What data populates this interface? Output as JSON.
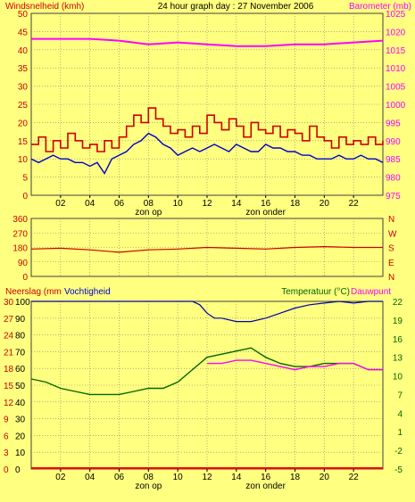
{
  "header": {
    "left": "Windsnelheid (kmh)",
    "center": "24 hour graph day : 27 November 2006",
    "right": "Barometer (mb)"
  },
  "labels": {
    "sunrise": "zon op",
    "sunset": "zon onder",
    "neerslag": "Neerslag (mm",
    "vocht": "Vochtigheid",
    "temp": "Temperatuur (°C)",
    "dauw": "Dauwpunt"
  },
  "colors": {
    "bg": "#FFFF80",
    "plot": "#FFFF80",
    "wind": "#CC0000",
    "windAvg": "#0000CC",
    "baro": "#FF00FF",
    "temp": "#006600",
    "dew": "#FF00FF",
    "hum": "#0000AA",
    "rain": "#FF0000",
    "winddir": "#CC0000",
    "grid": "#808080"
  },
  "chart_data": [
    {
      "type": "line",
      "name": "wind-barometer",
      "x_ticks": [
        "02",
        "04",
        "06",
        "08",
        "10",
        "12",
        "14",
        "16",
        "18",
        "20",
        "22"
      ],
      "ylim": [
        0,
        50
      ],
      "y_ticks_left": [
        0,
        5,
        10,
        15,
        20,
        25,
        30,
        35,
        40,
        45,
        50
      ],
      "ylim_right": [
        975,
        1025
      ],
      "y_ticks_right": [
        975,
        980,
        985,
        990,
        995,
        1000,
        1005,
        1010,
        1015,
        1020,
        1025
      ],
      "gust_hours": [
        0,
        0.5,
        1,
        1.5,
        2,
        2.5,
        3,
        3.5,
        4,
        4.5,
        5,
        5.5,
        6,
        6.5,
        7,
        7.5,
        8,
        8.5,
        9,
        9.5,
        10,
        10.5,
        11,
        11.5,
        12,
        12.5,
        13,
        13.5,
        14,
        14.5,
        15,
        15.5,
        16,
        16.5,
        17,
        17.5,
        18,
        18.5,
        19,
        19.5,
        20,
        20.5,
        21,
        21.5,
        22,
        22.5,
        23,
        23.5,
        24
      ],
      "gust": [
        14,
        16,
        12,
        15,
        13,
        17,
        15,
        13,
        14,
        12,
        15,
        13,
        16,
        19,
        22,
        20,
        24,
        21,
        19,
        17,
        18,
        16,
        19,
        17,
        22,
        20,
        18,
        21,
        19,
        16,
        20,
        18,
        17,
        19,
        16,
        18,
        17,
        15,
        19,
        16,
        15,
        13,
        16,
        14,
        15,
        14,
        16,
        14,
        15
      ],
      "avg_hours": [
        0,
        0.5,
        1,
        1.5,
        2,
        2.5,
        3,
        3.5,
        4,
        4.5,
        5,
        5.5,
        6,
        6.5,
        7,
        7.5,
        8,
        8.5,
        9,
        9.5,
        10,
        10.5,
        11,
        11.5,
        12,
        12.5,
        13,
        13.5,
        14,
        14.5,
        15,
        15.5,
        16,
        16.5,
        17,
        17.5,
        18,
        18.5,
        19,
        19.5,
        20,
        20.5,
        21,
        21.5,
        22,
        22.5,
        23,
        23.5,
        24
      ],
      "avg": [
        10,
        9,
        10,
        11,
        10,
        10,
        9,
        9,
        8,
        9,
        6,
        10,
        11,
        12,
        14,
        15,
        17,
        16,
        14,
        13,
        11,
        12,
        13,
        12,
        13,
        14,
        13,
        12,
        14,
        13,
        12,
        12,
        14,
        13,
        13,
        12,
        12,
        11,
        11,
        10,
        10,
        10,
        11,
        10,
        10,
        11,
        10,
        10,
        9
      ],
      "baro_hours": [
        0,
        2,
        4,
        6,
        8,
        10,
        12,
        14,
        16,
        18,
        20,
        22,
        24
      ],
      "baro": [
        1018,
        1018,
        1018,
        1017.5,
        1016.5,
        1017,
        1016.5,
        1016,
        1016,
        1016.5,
        1016.5,
        1017,
        1017.5
      ]
    },
    {
      "type": "line",
      "name": "wind-direction",
      "y_ticks": [
        360,
        270,
        180,
        90,
        0
      ],
      "y_ticks_right": [
        "N",
        "W",
        "S",
        "E",
        "N"
      ],
      "hours": [
        0,
        2,
        4,
        6,
        8,
        10,
        12,
        14,
        16,
        18,
        20,
        22,
        24
      ],
      "values": [
        170,
        175,
        165,
        150,
        165,
        170,
        180,
        175,
        170,
        180,
        185,
        180,
        180
      ]
    },
    {
      "type": "line",
      "name": "humidity-temperature",
      "y_ticks_left_rain": [
        0,
        3,
        6,
        9,
        12,
        15,
        18,
        21,
        24,
        27,
        30
      ],
      "y_ticks_left_hum": [
        0,
        10,
        20,
        30,
        40,
        50,
        60,
        70,
        80,
        90,
        100
      ],
      "y_ticks_right": [
        -5,
        -2,
        1,
        4,
        7,
        10,
        13,
        16,
        19,
        22
      ],
      "ylim_temp": [
        -5,
        22
      ],
      "hum_hours": [
        0,
        2,
        4,
        6,
        8,
        10,
        11,
        11.5,
        12,
        12.5,
        13,
        14,
        15,
        16,
        17,
        18,
        19,
        20,
        21,
        22,
        23,
        24
      ],
      "humidity": [
        100,
        100,
        100,
        100,
        100,
        100,
        100,
        98,
        93,
        90,
        90,
        88,
        88,
        90,
        93,
        96,
        98,
        99,
        100,
        99,
        100,
        100
      ],
      "temp_hours": [
        0,
        1,
        2,
        3,
        4,
        5,
        6,
        7,
        8,
        9,
        10,
        11,
        12,
        13,
        14,
        15,
        16,
        17,
        18,
        19,
        20,
        21,
        22,
        23,
        24
      ],
      "temperature": [
        9.5,
        9,
        8,
        7.5,
        7,
        7,
        7,
        7.5,
        8,
        8,
        9,
        11,
        13,
        13.5,
        14,
        14.5,
        13,
        12,
        11.5,
        11.5,
        12,
        12,
        12,
        11,
        11
      ],
      "dew_hours": [
        12,
        13,
        14,
        15,
        16,
        17,
        18,
        19,
        20,
        21,
        22,
        23,
        24
      ],
      "dewpoint": [
        12,
        12,
        12.5,
        12.5,
        12,
        11.5,
        11,
        11.5,
        11.5,
        12,
        12,
        11,
        11
      ],
      "rain_value": 0
    }
  ]
}
